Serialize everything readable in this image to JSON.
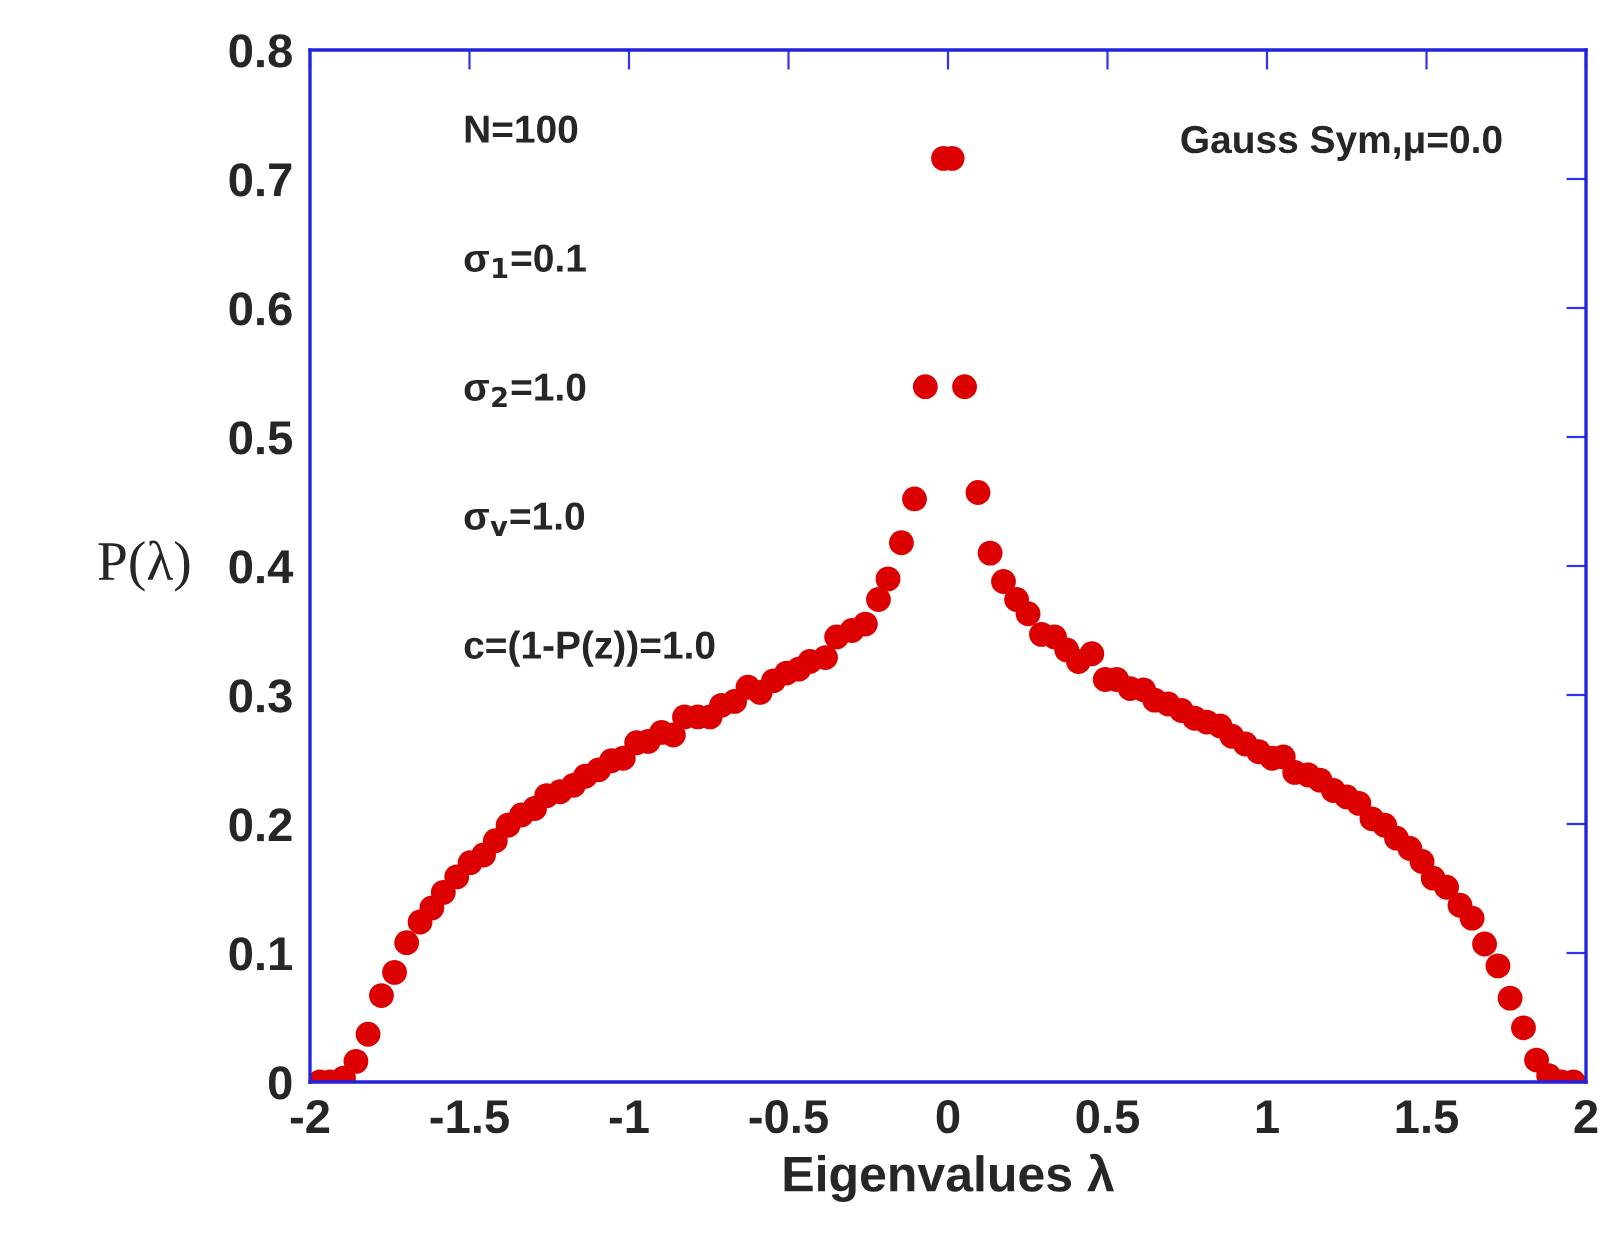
{
  "chart_data": {
    "type": "scatter",
    "xlabel": "Eigenvalues λ",
    "ylabel": "P(λ)",
    "annotations": [
      "N=100",
      "σ$_{1}$=0.1",
      "σ$_{2}$=1.0",
      "σ$_{v}$=1.0",
      "c=(1-P(z))=1.0",
      "Gauss Sym,μ=0.0"
    ],
    "xlim": [
      -2,
      2
    ],
    "ylim": [
      0,
      0.8
    ],
    "xticks": [
      -2,
      -1.5,
      -1,
      -0.5,
      0,
      0.5,
      1,
      1.5,
      2
    ],
    "yticks": [
      0,
      0.1,
      0.2,
      0.3,
      0.4,
      0.5,
      0.6,
      0.7,
      0.8
    ],
    "grid": false,
    "legend": false,
    "marker": "circle",
    "series": [
      {
        "color": "#dd0000",
        "x": [
          -1.969,
          -1.937,
          -1.895,
          -1.856,
          -1.818,
          -1.776,
          -1.735,
          -1.697,
          -1.655,
          -1.618,
          -1.582,
          -1.54,
          -1.498,
          -1.456,
          -1.419,
          -1.379,
          -1.337,
          -1.296,
          -1.258,
          -1.216,
          -1.174,
          -1.137,
          -1.095,
          -1.055,
          -1.018,
          -0.976,
          -0.94,
          -0.898,
          -0.861,
          -0.826,
          -0.784,
          -0.746,
          -0.71,
          -0.669,
          -0.627,
          -0.589,
          -0.547,
          -0.506,
          -0.468,
          -0.433,
          -0.384,
          -0.349,
          -0.301,
          -0.259,
          -0.218,
          -0.188,
          -0.146,
          -0.105,
          -0.071,
          -0.014,
          0.013,
          0.052,
          0.094,
          0.132,
          0.174,
          0.215,
          0.251,
          0.293,
          0.334,
          0.372,
          0.409,
          0.451,
          0.493,
          0.529,
          0.571,
          0.613,
          0.648,
          0.69,
          0.732,
          0.773,
          0.811,
          0.853,
          0.89,
          0.932,
          0.974,
          1.016,
          1.051,
          1.087,
          1.129,
          1.166,
          1.208,
          1.25,
          1.288,
          1.329,
          1.369,
          1.406,
          1.448,
          1.486,
          1.521,
          1.563,
          1.605,
          1.643,
          1.682,
          1.724,
          1.762,
          1.804,
          1.845,
          1.883,
          1.923,
          1.961
        ],
        "values": [
          0.0,
          0.0,
          0.003,
          0.016,
          0.037,
          0.067,
          0.085,
          0.108,
          0.124,
          0.135,
          0.147,
          0.159,
          0.17,
          0.176,
          0.187,
          0.199,
          0.207,
          0.212,
          0.222,
          0.225,
          0.23,
          0.237,
          0.242,
          0.249,
          0.251,
          0.263,
          0.264,
          0.271,
          0.269,
          0.283,
          0.283,
          0.283,
          0.292,
          0.295,
          0.306,
          0.302,
          0.311,
          0.317,
          0.32,
          0.326,
          0.329,
          0.345,
          0.35,
          0.355,
          0.374,
          0.39,
          0.418,
          0.452,
          0.539,
          0.716,
          0.716,
          0.539,
          0.457,
          0.41,
          0.388,
          0.374,
          0.363,
          0.347,
          0.345,
          0.335,
          0.326,
          0.332,
          0.312,
          0.312,
          0.305,
          0.304,
          0.296,
          0.293,
          0.288,
          0.282,
          0.279,
          0.276,
          0.268,
          0.262,
          0.256,
          0.251,
          0.252,
          0.24,
          0.238,
          0.234,
          0.226,
          0.221,
          0.216,
          0.204,
          0.199,
          0.189,
          0.181,
          0.171,
          0.158,
          0.151,
          0.137,
          0.127,
          0.107,
          0.09,
          0.065,
          0.042,
          0.017,
          0.005,
          0.0,
          0.0
        ]
      }
    ]
  }
}
